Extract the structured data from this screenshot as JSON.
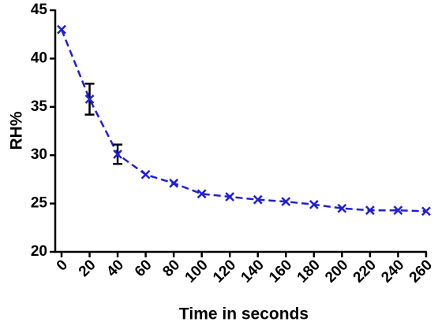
{
  "chart_data": {
    "type": "line",
    "x_label": "Time in seconds",
    "y_label": "RH%",
    "x": [
      0,
      20,
      40,
      60,
      80,
      100,
      120,
      140,
      160,
      180,
      200,
      220,
      240,
      260
    ],
    "series": [
      {
        "color": "#1f1fd6",
        "values": [
          43,
          35.8,
          30.1,
          28,
          27.1,
          26,
          25.7,
          25.4,
          25.2,
          24.9,
          24.5,
          24.3,
          24.3,
          24.2
        ],
        "errors": [
          null,
          1.6,
          1.0,
          null,
          null,
          null,
          null,
          null,
          null,
          null,
          null,
          null,
          null,
          null
        ]
      }
    ],
    "xlim": [
      0,
      260
    ],
    "xticks": [
      0,
      20,
      40,
      60,
      80,
      100,
      120,
      140,
      160,
      180,
      200,
      220,
      240,
      260
    ],
    "ylim": [
      20,
      45
    ],
    "yticks": [
      20,
      25,
      30,
      35,
      40,
      45
    ]
  }
}
